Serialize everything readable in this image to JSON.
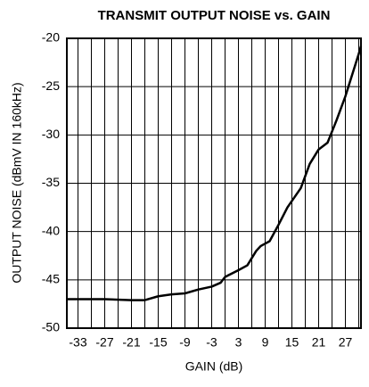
{
  "chart_data": {
    "type": "line",
    "title": "TRANSMIT OUTPUT NOISE vs. GAIN",
    "xlabel": "GAIN (dB)",
    "ylabel": "OUTPUT NOISE (dBmV IN 160kHz)",
    "x": [
      -35.5,
      -33,
      -27,
      -21,
      -18,
      -15,
      -12,
      -9,
      -6,
      -3,
      -1,
      0,
      3,
      5,
      7,
      8,
      10,
      12,
      14,
      17,
      19,
      21,
      23,
      25,
      27,
      30,
      30.5
    ],
    "series": [
      {
        "name": "noise",
        "color": "#000000",
        "values": [
          -47,
          -47,
          -47,
          -47.1,
          -47.1,
          -46.7,
          -46.5,
          -46.4,
          -46,
          -45.7,
          -45.3,
          -44.7,
          -44,
          -43.5,
          -42,
          -41.5,
          -41,
          -39.3,
          -37.5,
          -35.5,
          -33,
          -31.5,
          -30.8,
          -28.5,
          -26,
          -21.6,
          -20.8
        ]
      }
    ],
    "xlim": [
      -35.5,
      30.5
    ],
    "xticks": [
      -33,
      -27,
      -21,
      -15,
      -9,
      -3,
      3,
      9,
      15,
      21,
      27
    ],
    "xgrid": [
      -33,
      -30,
      -27,
      -24,
      -21,
      -18,
      -15,
      -12,
      -9,
      -6,
      -3,
      0,
      3,
      6,
      9,
      12,
      15,
      18,
      21,
      24,
      27,
      30
    ],
    "ylim": [
      -50,
      -20
    ],
    "yticks": [
      -50,
      -45,
      -40,
      -35,
      -30,
      -25,
      -20
    ],
    "grid": true
  }
}
